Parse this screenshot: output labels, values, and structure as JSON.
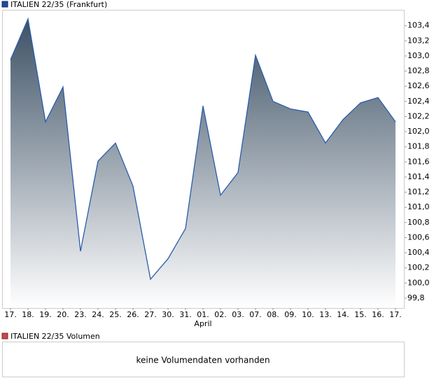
{
  "chart_data": {
    "type": "area",
    "title": "ITALIEN 22/35 (Frankfurt)",
    "categories": [
      "17.",
      "18.",
      "19.",
      "20.",
      "23.",
      "24.",
      "25.",
      "26.",
      "27.",
      "30.",
      "31.",
      "01.",
      "02.",
      "03.",
      "07.",
      "08.",
      "09.",
      "10.",
      "13.",
      "14.",
      "15.",
      "16.",
      "17."
    ],
    "series": [
      {
        "name": "ITALIEN 22/35 (Frankfurt)",
        "color": "#2a5caa",
        "values": [
          102.95,
          103.49,
          102.13,
          102.59,
          100.42,
          101.61,
          101.85,
          101.28,
          100.05,
          100.32,
          100.72,
          102.34,
          101.16,
          101.46,
          103.01,
          102.4,
          102.3,
          102.26,
          101.85,
          102.16,
          102.38,
          102.45,
          102.13
        ]
      }
    ],
    "annotations": [
      {
        "text": "April",
        "category": "01."
      }
    ],
    "ylim": [
      99.67,
      103.61
    ],
    "yticks": [
      {
        "value": 99.8,
        "label": "99,8"
      },
      {
        "value": 100.0,
        "label": "100,0"
      },
      {
        "value": 100.2,
        "label": "100,2"
      },
      {
        "value": 100.4,
        "label": "100,4"
      },
      {
        "value": 100.6,
        "label": "100,6"
      },
      {
        "value": 100.8,
        "label": "100,8"
      },
      {
        "value": 101.0,
        "label": "101,0"
      },
      {
        "value": 101.2,
        "label": "101,2"
      },
      {
        "value": 101.4,
        "label": "101,4"
      },
      {
        "value": 101.6,
        "label": "101,6"
      },
      {
        "value": 101.8,
        "label": "101,8"
      },
      {
        "value": 102.0,
        "label": "102,0"
      },
      {
        "value": 102.2,
        "label": "102,2"
      },
      {
        "value": 102.4,
        "label": "102,4"
      },
      {
        "value": 102.6,
        "label": "102,6"
      },
      {
        "value": 102.8,
        "label": "102,8"
      },
      {
        "value": 103.0,
        "label": "103,0"
      },
      {
        "value": 103.2,
        "label": "103,2"
      },
      {
        "value": 103.4,
        "label": "103,4"
      }
    ],
    "volume_panel": {
      "title": "ITALIEN 22/35 Volumen",
      "message": "keine Volumendaten vorhanden",
      "color": "#c84848"
    }
  }
}
